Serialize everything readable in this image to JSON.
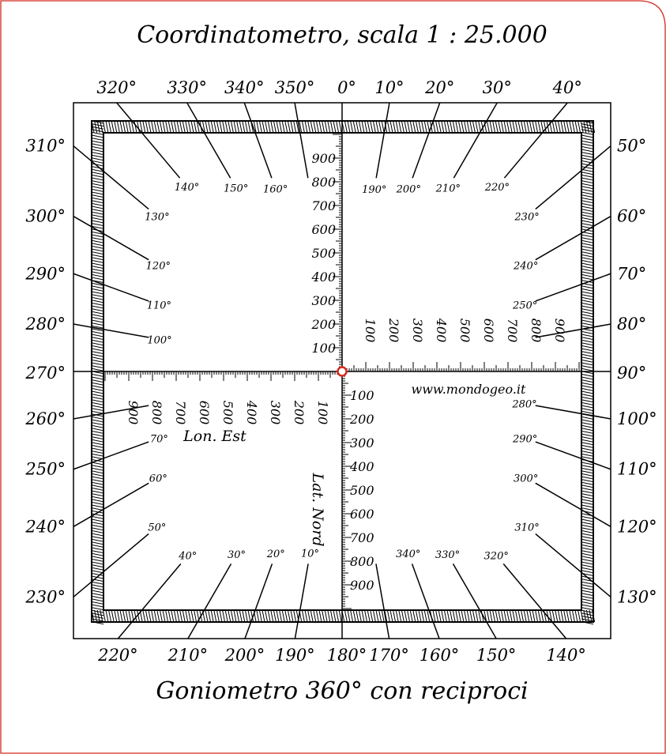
{
  "title": "Coordinatometro, scala 1 : 25.000",
  "footer": "Goniometro 360° con reciproci",
  "website": "www.mondogeo.it",
  "axis_labels": {
    "lon": "Lon. Est",
    "lat": "Lat. Nord"
  },
  "scale_numbers": [
    "100",
    "200",
    "300",
    "400",
    "500",
    "600",
    "700",
    "800",
    "900"
  ],
  "outer_degrees": [
    "0°",
    "10°",
    "20°",
    "30°",
    "40°",
    "50°",
    "60°",
    "70°",
    "80°",
    "90°",
    "100°",
    "110°",
    "120°",
    "130°",
    "140°",
    "150°",
    "160°",
    "170°",
    "180°",
    "190°",
    "200°",
    "210°",
    "220°",
    "230°",
    "240°",
    "250°",
    "260°",
    "270°",
    "280°",
    "290°",
    "300°",
    "310°",
    "320°",
    "330°",
    "340°",
    "350°"
  ],
  "inner_degrees_top": [
    "100°",
    "110°",
    "120°",
    "130°",
    "140°",
    "150°",
    "160°",
    "190°",
    "200°",
    "210°",
    "220°",
    "230°",
    "240°",
    "250°"
  ],
  "inner_degrees_bottom": [
    "10°",
    "20°",
    "30°",
    "40°",
    "50°",
    "60°",
    "70°",
    "280°",
    "290°",
    "300°",
    "310°",
    "320°",
    "330°",
    "340°"
  ],
  "colors": {
    "border": "#d32a1e",
    "ink": "#000000",
    "origin": "#d32a1e"
  }
}
